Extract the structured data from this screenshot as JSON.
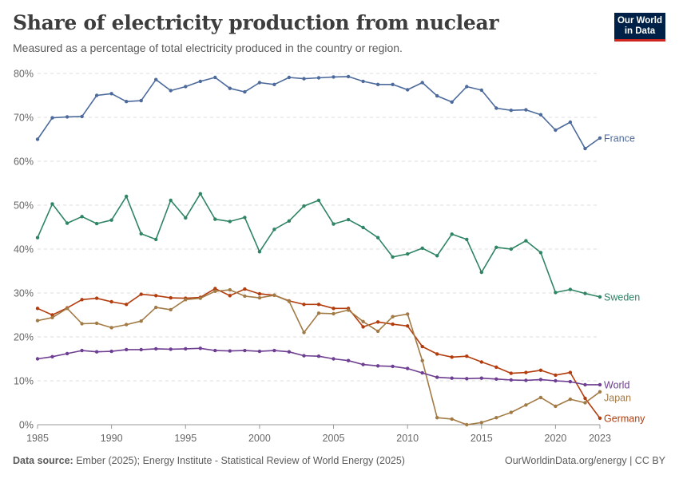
{
  "header": {
    "title": "Share of electricity production from nuclear",
    "subtitle": "Measured as a percentage of total electricity produced in the country or region."
  },
  "logo": {
    "line1": "Our World",
    "line2": "in Data"
  },
  "footer": {
    "source_label": "Data source:",
    "source_text": "Ember (2025); Energy Institute - Statistical Review of World Energy (2025)",
    "right_text": "OurWorldinData.org/energy | CC BY"
  },
  "chart_data": {
    "type": "line",
    "title": "Share of electricity production from nuclear",
    "subtitle": "Measured as a percentage of total electricity produced in the country or region.",
    "x": [
      1985,
      1986,
      1987,
      1988,
      1989,
      1990,
      1991,
      1992,
      1993,
      1994,
      1995,
      1996,
      1997,
      1998,
      1999,
      2000,
      2001,
      2002,
      2003,
      2004,
      2005,
      2006,
      2007,
      2008,
      2009,
      2010,
      2011,
      2012,
      2013,
      2014,
      2015,
      2016,
      2017,
      2018,
      2019,
      2020,
      2021,
      2022,
      2023
    ],
    "xlim": [
      1985,
      2023
    ],
    "ylim": [
      0,
      80
    ],
    "x_ticks": [
      1985,
      1990,
      1995,
      2000,
      2005,
      2010,
      2015,
      2020,
      2023
    ],
    "y_ticks": [
      0,
      10,
      20,
      30,
      40,
      50,
      60,
      70,
      80
    ],
    "y_tick_labels": [
      "0%",
      "10%",
      "20%",
      "30%",
      "40%",
      "50%",
      "60%",
      "70%",
      "80%"
    ],
    "grid": "horizontal-dashed",
    "legend": "right-end-labels",
    "series": [
      {
        "name": "France",
        "color": "#4c6a9c",
        "values": [
          65.0,
          69.9,
          70.1,
          70.2,
          75.0,
          75.4,
          73.6,
          73.8,
          78.6,
          76.1,
          77.0,
          78.2,
          79.1,
          76.6,
          75.8,
          77.9,
          77.5,
          79.1,
          78.8,
          79.0,
          79.2,
          79.3,
          78.2,
          77.5,
          77.5,
          76.3,
          77.9,
          74.9,
          73.5,
          77.0,
          76.2,
          72.1,
          71.6,
          71.7,
          70.6,
          67.1,
          68.9,
          62.9,
          65.3
        ]
      },
      {
        "name": "Sweden",
        "color": "#2e8463",
        "values": [
          42.6,
          50.3,
          45.9,
          47.4,
          45.8,
          46.6,
          52.0,
          43.5,
          42.2,
          51.1,
          47.1,
          52.6,
          46.8,
          46.3,
          47.2,
          39.4,
          44.5,
          46.4,
          49.8,
          51.1,
          45.7,
          46.7,
          44.9,
          42.6,
          38.2,
          38.9,
          40.2,
          38.5,
          43.4,
          42.2,
          34.7,
          40.4,
          40.0,
          41.9,
          39.2,
          30.1,
          30.8,
          29.9,
          29.1
        ]
      },
      {
        "name": "Germany",
        "color": "#b33c0c",
        "values": [
          26.5,
          25.0,
          26.6,
          28.5,
          28.8,
          28.0,
          27.4,
          29.7,
          29.4,
          28.9,
          28.8,
          29.0,
          31.0,
          29.4,
          30.9,
          29.8,
          29.5,
          28.2,
          27.4,
          27.4,
          26.5,
          26.5,
          22.3,
          23.4,
          22.9,
          22.5,
          17.8,
          16.1,
          15.4,
          15.6,
          14.3,
          13.1,
          11.7,
          11.9,
          12.4,
          11.3,
          11.9,
          6.0,
          1.5
        ]
      },
      {
        "name": "Japan",
        "color": "#a27a45",
        "values": [
          23.7,
          24.4,
          26.5,
          23.0,
          23.1,
          22.1,
          22.8,
          23.6,
          26.7,
          26.2,
          28.5,
          28.8,
          30.4,
          30.7,
          29.3,
          28.9,
          29.5,
          28.1,
          21.0,
          25.4,
          25.3,
          26.1,
          23.5,
          21.3,
          24.6,
          25.2,
          14.6,
          1.6,
          1.3,
          0.0,
          0.5,
          1.6,
          2.8,
          4.5,
          6.2,
          4.2,
          5.8,
          5.0,
          7.5
        ]
      },
      {
        "name": "World",
        "color": "#6d3e91",
        "values": [
          15.0,
          15.5,
          16.2,
          16.9,
          16.6,
          16.7,
          17.1,
          17.1,
          17.3,
          17.2,
          17.3,
          17.4,
          16.9,
          16.8,
          16.9,
          16.7,
          16.9,
          16.6,
          15.7,
          15.6,
          15.0,
          14.6,
          13.7,
          13.4,
          13.3,
          12.8,
          11.8,
          10.8,
          10.6,
          10.5,
          10.6,
          10.4,
          10.2,
          10.1,
          10.3,
          10.0,
          9.8,
          9.1,
          9.1
        ]
      }
    ]
  }
}
